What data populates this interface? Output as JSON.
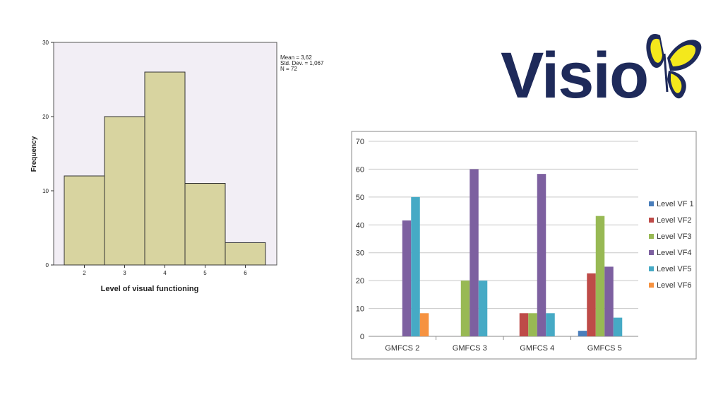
{
  "logo": {
    "text": "Visio",
    "colors": {
      "text": "#1e2a5a",
      "wing_yellow": "#f4e81c",
      "wing_dark": "#1e2a5a"
    }
  },
  "chart_data": [
    {
      "type": "bar",
      "subtype": "histogram",
      "title": "",
      "xlabel": "Level of visual functioning",
      "ylabel": "Frequency",
      "categories": [
        "2",
        "3",
        "4",
        "5",
        "6"
      ],
      "values": [
        12,
        20,
        26,
        11,
        3
      ],
      "ylim": [
        0,
        30
      ],
      "yticks": [
        "0",
        "10",
        "20",
        "30"
      ],
      "stats": [
        "Mean = 3,62",
        "Std. Dev. = 1,067",
        "N = 72"
      ],
      "colors": {
        "bar": "#d8d4a0",
        "edge": "#333333",
        "plot_bg": "#f2eef5"
      },
      "grid": false
    },
    {
      "type": "bar",
      "subtype": "grouped",
      "title": "",
      "xlabel": "",
      "ylabel": "",
      "categories": [
        "GMFCS 2",
        "GMFCS 3",
        "GMFCS 4",
        "GMFCS 5"
      ],
      "ylim": [
        0,
        70
      ],
      "yticks": [
        "0",
        "10",
        "20",
        "30",
        "40",
        "50",
        "60",
        "70"
      ],
      "grid": true,
      "legend_position": "right",
      "series": [
        {
          "name": "Level VF 1",
          "color": "#4a7ebb",
          "values": [
            0,
            0,
            0,
            2
          ]
        },
        {
          "name": "Level VF2",
          "color": "#be4b48",
          "values": [
            0,
            0,
            8.3,
            22.6
          ]
        },
        {
          "name": "Level VF3",
          "color": "#98b954",
          "values": [
            0,
            20,
            8.3,
            43.2
          ]
        },
        {
          "name": "Level VF4",
          "color": "#7d60a0",
          "values": [
            41.6,
            60,
            58.3,
            25
          ]
        },
        {
          "name": "Level VF5",
          "color": "#46aac5",
          "values": [
            50,
            20,
            8.3,
            6.7
          ]
        },
        {
          "name": "Level VF6",
          "color": "#f69240",
          "values": [
            8.3,
            0,
            0,
            0
          ]
        }
      ]
    }
  ]
}
